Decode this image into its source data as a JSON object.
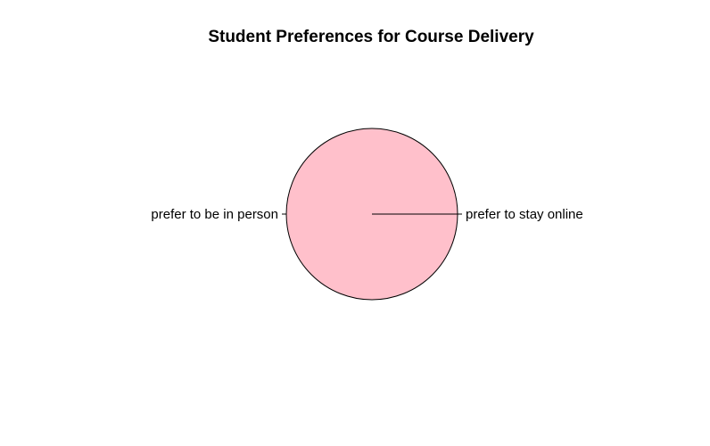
{
  "chart_data": {
    "type": "pie",
    "title": "Student Preferences for Course Delivery",
    "slices": [
      {
        "label": "prefer to be in person",
        "value": 100,
        "color": "#FFC0CB"
      },
      {
        "label": "prefer to stay online",
        "value": 0,
        "color": "#FFFFFF"
      }
    ],
    "border_color": "#000000",
    "start_direction": "east",
    "clockwise": false
  }
}
